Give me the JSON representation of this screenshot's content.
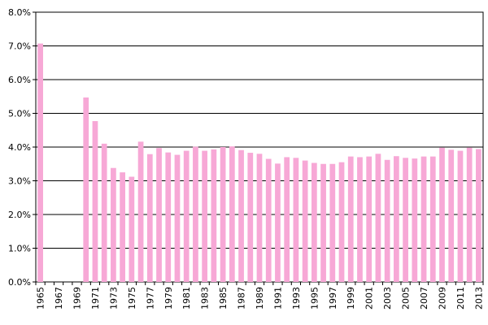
{
  "chart_data": {
    "type": "bar",
    "title": "",
    "xlabel": "",
    "ylabel": "",
    "ylim": [
      0,
      8
    ],
    "y_unit": "%",
    "y_ticks": [
      "0.0%",
      "1.0%",
      "2.0%",
      "3.0%",
      "4.0%",
      "5.0%",
      "6.0%",
      "7.0%",
      "8.0%"
    ],
    "grid": true,
    "legend": "none",
    "bar_color": "#F7A8D6",
    "categories": [
      "1965",
      "1966",
      "1967",
      "1968",
      "1969",
      "1970",
      "1971",
      "1972",
      "1973",
      "1974",
      "1975",
      "1976",
      "1977",
      "1978",
      "1979",
      "1980",
      "1981",
      "1982",
      "1983",
      "1984",
      "1985",
      "1986",
      "1987",
      "1988",
      "1989",
      "1990",
      "1991",
      "1992",
      "1993",
      "1994",
      "1995",
      "1996",
      "1997",
      "1998",
      "1999",
      "2000",
      "2001",
      "2002",
      "2003",
      "2004",
      "2005",
      "2006",
      "2007",
      "2008",
      "2009",
      "2010",
      "2011",
      "2012",
      "2013"
    ],
    "x_tick_labels": [
      "1965",
      "1967",
      "1969",
      "1971",
      "1973",
      "1975",
      "1977",
      "1979",
      "1981",
      "1983",
      "1985",
      "1987",
      "1989",
      "1991",
      "1993",
      "1995",
      "1997",
      "1999",
      "2001",
      "2003",
      "2005",
      "2007",
      "2009",
      "2011",
      "2013"
    ],
    "values": [
      7.07,
      null,
      null,
      null,
      null,
      5.47,
      4.77,
      4.1,
      3.38,
      3.25,
      3.12,
      4.16,
      3.79,
      3.97,
      3.84,
      3.77,
      3.89,
      4.01,
      3.89,
      3.93,
      4.0,
      4.02,
      3.91,
      3.83,
      3.8,
      3.65,
      3.51,
      3.7,
      3.68,
      3.6,
      3.53,
      3.5,
      3.5,
      3.55,
      3.72,
      3.7,
      3.72,
      3.8,
      3.62,
      3.73,
      3.68,
      3.66,
      3.72,
      3.72,
      3.98,
      3.92,
      3.89,
      3.98,
      3.94
    ]
  }
}
